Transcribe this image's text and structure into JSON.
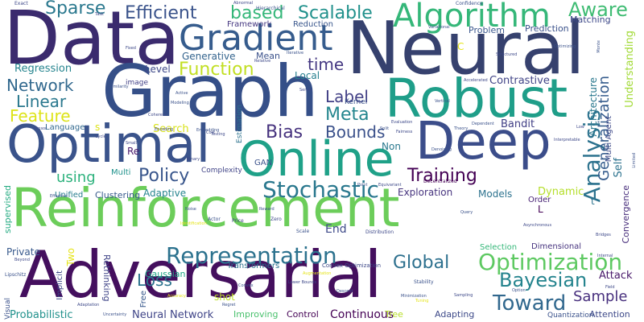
{
  "words": [
    {
      "text": "Reinforcement",
      "color": "#6ccd5a"
    },
    {
      "text": "Adversarial",
      "color": "#440f5e"
    },
    {
      "text": "Data",
      "color": "#3b2b6e"
    },
    {
      "text": "Neural",
      "color": "#36416e"
    },
    {
      "text": "Graph",
      "color": "#354f88"
    },
    {
      "text": "Robust",
      "color": "#1f9e89"
    },
    {
      "text": "Deep",
      "color": "#3b4d8a"
    },
    {
      "text": "Optimal",
      "color": "#3a538b"
    },
    {
      "text": "Online",
      "color": "#1fa188"
    },
    {
      "text": "Algorithm",
      "color": "#35b779"
    },
    {
      "text": "Gradient",
      "color": "#365c8d"
    },
    {
      "text": "Representation",
      "color": "#2c728e"
    },
    {
      "text": "Optimization",
      "color": "#5ec962"
    },
    {
      "text": "Function",
      "color": "#c2df23"
    },
    {
      "text": "Stochastic",
      "color": "#2a788e"
    },
    {
      "text": "Training",
      "color": "#440154"
    },
    {
      "text": "Bayesian",
      "color": "#25848e"
    },
    {
      "text": "Toward",
      "color": "#31688e"
    },
    {
      "text": "Global",
      "color": "#2d708e"
    },
    {
      "text": "Analysis",
      "color": "#2c728e"
    },
    {
      "text": "Efficient",
      "color": "#3a538b"
    },
    {
      "text": "Scalable",
      "color": "#21918c"
    },
    {
      "text": "based",
      "color": "#35b779"
    },
    {
      "text": "Sparse",
      "color": "#2a788e"
    },
    {
      "text": "Aware",
      "color": "#3fbc73"
    },
    {
      "text": "Network",
      "color": "#31688e"
    },
    {
      "text": "Linear",
      "color": "#2a788e"
    },
    {
      "text": "Feature",
      "color": "#dde318"
    },
    {
      "text": "Meta",
      "color": "#24868e"
    },
    {
      "text": "Bias",
      "color": "#46327e"
    },
    {
      "text": "Bounds",
      "color": "#3b518b"
    },
    {
      "text": "Policy",
      "color": "#39568c"
    },
    {
      "text": "Label",
      "color": "#424086"
    },
    {
      "text": "time",
      "color": "#453882"
    },
    {
      "text": "Loss",
      "color": "#2c738e"
    },
    {
      "text": "Sample",
      "color": "#472f7d"
    },
    {
      "text": "Generalization",
      "color": "#365c8d"
    },
    {
      "text": "Probabilistic",
      "color": "#21918c"
    },
    {
      "text": "using",
      "color": "#2db27d"
    },
    {
      "text": "Continuous",
      "color": "#440154"
    },
    {
      "text": "Neural Network",
      "color": "#404588"
    },
    {
      "text": "Attack",
      "color": "#48186a"
    },
    {
      "text": "Contrastive",
      "color": "#414487"
    },
    {
      "text": "Regression",
      "color": "#25848e"
    },
    {
      "text": "Architecture",
      "color": "#2a788e"
    },
    {
      "text": "Bandit",
      "color": "#424086"
    },
    {
      "text": "Exploration",
      "color": "#46337e"
    },
    {
      "text": "Models",
      "color": "#2c728e"
    },
    {
      "text": "Dynamic",
      "color": "#b5de2b"
    },
    {
      "text": "Understanding",
      "color": "#a2da37"
    },
    {
      "text": "Self",
      "color": "#2c728e"
    },
    {
      "text": "Multi Agent",
      "color": "#3e4989"
    },
    {
      "text": "Generative",
      "color": "#33638d"
    },
    {
      "text": "Level",
      "color": "#3e4989"
    },
    {
      "text": "Local",
      "color": "#277f8e"
    },
    {
      "text": "Search",
      "color": "#d8e219"
    },
    {
      "text": "Adaptive",
      "color": "#25848e"
    },
    {
      "text": "Clustering",
      "color": "#375a8c"
    },
    {
      "text": "Unified",
      "color": "#287c8e"
    },
    {
      "text": "supervised",
      "color": "#25ab82"
    },
    {
      "text": "Private",
      "color": "#38598c"
    },
    {
      "text": "Two",
      "color": "#e5e419"
    },
    {
      "text": "Rethinking",
      "color": "#404588"
    },
    {
      "text": "Gaussian",
      "color": "#20a486"
    },
    {
      "text": "Transformers",
      "color": "#2c728e"
    },
    {
      "text": "Dimensional",
      "color": "#46337e"
    },
    {
      "text": "Selection",
      "color": "#35b779"
    },
    {
      "text": "Convergence",
      "color": "#472d7b"
    },
    {
      "text": "Attention",
      "color": "#3e4989"
    },
    {
      "text": "Improving",
      "color": "#4ac16d"
    },
    {
      "text": "Control",
      "color": "#440154"
    },
    {
      "text": "Tree",
      "color": "#b8de29"
    },
    {
      "text": "Adapting",
      "color": "#3e4a89"
    },
    {
      "text": "Mean",
      "color": "#3b528b"
    },
    {
      "text": "Framework",
      "color": "#453781"
    },
    {
      "text": "Reduction",
      "color": "#39568c"
    },
    {
      "text": "Problem",
      "color": "#39568c"
    },
    {
      "text": "Prediction",
      "color": "#3b528b"
    },
    {
      "text": "Matching",
      "color": "#3e4989"
    },
    {
      "text": "Language",
      "color": "#31688e"
    },
    {
      "text": "image",
      "color": "#424086"
    },
    {
      "text": "Non",
      "color": "#2a788e"
    },
    {
      "text": "End",
      "color": "#3e4a89"
    },
    {
      "text": "Re",
      "color": "#481a6c"
    },
    {
      "text": "Multi",
      "color": "#20928c"
    },
    {
      "text": "Complexity",
      "color": "#414487"
    },
    {
      "text": "Estimation",
      "color": "#2c728e"
    },
    {
      "text": "GAN",
      "color": "#3b528b"
    },
    {
      "text": "Order",
      "color": "#482475"
    },
    {
      "text": "Kernel",
      "color": "#3b528b"
    },
    {
      "text": "Quantization",
      "color": "#3b528b"
    },
    {
      "text": "Implicit",
      "color": "#3e4989"
    },
    {
      "text": "shot",
      "color": "#bddf26"
    },
    {
      "text": "Free",
      "color": "#38598c"
    },
    {
      "text": "Visual",
      "color": "#3b528b"
    },
    {
      "text": "L",
      "color": "#440154"
    },
    {
      "text": "s",
      "color": "#dde318"
    },
    {
      "text": "C",
      "color": "#e5e419"
    },
    {
      "text": "t",
      "color": "#2c728e"
    },
    {
      "text": "Convex Optimization",
      "color": "#3e4989"
    },
    {
      "text": "Actor",
      "color": "#3b528b"
    },
    {
      "text": "Price",
      "color": "#414487"
    },
    {
      "text": "Zero",
      "color": "#3e4989"
    },
    {
      "text": "Scale",
      "color": "#3b528b"
    },
    {
      "text": "Distribution",
      "color": "#3e4989"
    },
    {
      "text": "Decentralized",
      "color": "#440154"
    },
    {
      "text": "Stability",
      "color": "#3b528b"
    },
    {
      "text": "Fairness",
      "color": "#3e4989"
    },
    {
      "text": "Confidence",
      "color": "#3b528b"
    },
    {
      "text": "Exact",
      "color": "#3e4989"
    },
    {
      "text": "Modeling",
      "color": "#3b528b"
    },
    {
      "text": "Encoding",
      "color": "#3e4989"
    },
    {
      "text": "Hierarchical",
      "color": "#3b528b"
    },
    {
      "text": "Abnormal",
      "color": "#3e4989"
    },
    {
      "text": "Variational",
      "color": "#3b528b"
    },
    {
      "text": "Structured",
      "color": "#3e4989"
    },
    {
      "text": "Active",
      "color": "#3b528b"
    },
    {
      "text": "Lower Bounds",
      "color": "#3e4989"
    },
    {
      "text": "Minimization",
      "color": "#3b528b"
    },
    {
      "text": "Sampling",
      "color": "#3e4989"
    },
    {
      "text": "Descent",
      "color": "#3b528b"
    },
    {
      "text": "Asynchronous",
      "color": "#3e4989"
    },
    {
      "text": "Lipschitz",
      "color": "#3b528b"
    },
    {
      "text": "Beyond",
      "color": "#3e4989"
    },
    {
      "text": "Regret",
      "color": "#3b528b"
    },
    {
      "text": "Accuracy",
      "color": "#e5e419"
    },
    {
      "text": "Reward",
      "color": "#3b528b"
    },
    {
      "text": "Binary",
      "color": "#3e4989"
    },
    {
      "text": "Task",
      "color": "#3e4989"
    },
    {
      "text": "Monte",
      "color": "#3b528b"
    },
    {
      "text": "Field",
      "color": "#3e4989"
    },
    {
      "text": "Embedding",
      "color": "#3b528b"
    },
    {
      "text": "Augmentation",
      "color": "#e5e419"
    },
    {
      "text": "Evaluation",
      "color": "#3e4989"
    },
    {
      "text": "Dependent",
      "color": "#3b528b"
    },
    {
      "text": "Accelerated",
      "color": "#3e4989"
    },
    {
      "text": "Convex",
      "color": "#3b528b"
    },
    {
      "text": "Small",
      "color": "#3e4989"
    },
    {
      "text": "Effective",
      "color": "#3b528b"
    },
    {
      "text": "Tuning",
      "color": "#e5e419"
    },
    {
      "text": "Relative",
      "color": "#3e4989"
    },
    {
      "text": "Iterative",
      "color": "#3b528b"
    },
    {
      "text": "Low",
      "color": "#3e4989"
    },
    {
      "text": "Similarity",
      "color": "#3b528b"
    },
    {
      "text": "Coherent",
      "color": "#3e4989"
    },
    {
      "text": "Uncertainty",
      "color": "#3b528b"
    },
    {
      "text": "Identification",
      "color": "#e5e419"
    },
    {
      "text": "Testing",
      "color": "#3e4989"
    },
    {
      "text": "Denoising",
      "color": "#3b528b"
    },
    {
      "text": "Adaptation",
      "color": "#3e4989"
    },
    {
      "text": "Option",
      "color": "#3b528b"
    },
    {
      "text": "Internal",
      "color": "#3e4989"
    },
    {
      "text": "Optimizing",
      "color": "#3b528b"
    },
    {
      "text": "Cycle",
      "color": "#3e4989"
    },
    {
      "text": "Query",
      "color": "#3b528b"
    },
    {
      "text": "Interpretable",
      "color": "#3e4989"
    },
    {
      "text": "Vertical",
      "color": "#3b528b"
    },
    {
      "text": "Fixed",
      "color": "#3e4989"
    },
    {
      "text": "Limited",
      "color": "#3b528b"
    },
    {
      "text": "Bridges",
      "color": "#3e4989"
    },
    {
      "text": "Split",
      "color": "#3b528b"
    },
    {
      "text": "Cost",
      "color": "#3e4989"
    },
    {
      "text": "Point",
      "color": "#3b528b"
    },
    {
      "text": "Equivariant",
      "color": "#3e4989"
    },
    {
      "text": "Theory",
      "color": "#3b528b"
    },
    {
      "text": "Series",
      "color": "#3e4989"
    },
    {
      "text": "Noise",
      "color": "#3b528b"
    },
    {
      "text": "Tensor",
      "color": "#3e4989"
    }
  ]
}
